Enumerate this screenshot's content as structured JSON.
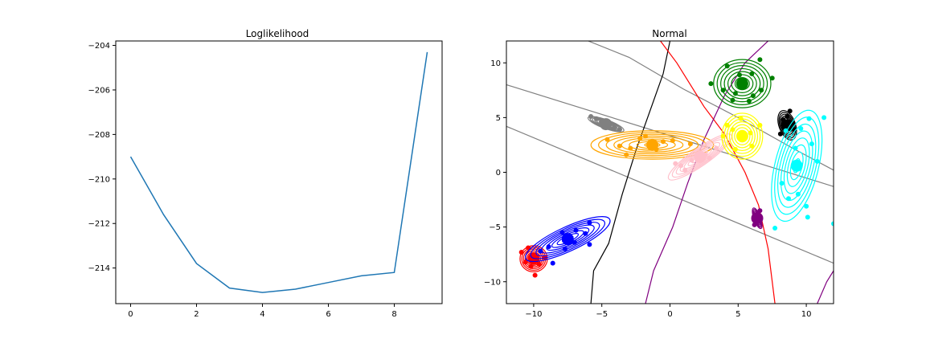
{
  "chart_data": [
    {
      "type": "line",
      "title": "Loglikelihood",
      "xlabel": "",
      "ylabel": "",
      "x": [
        0,
        1,
        2,
        3,
        4,
        5,
        6,
        7,
        8,
        9
      ],
      "y": [
        -209.0,
        -211.6,
        -213.8,
        -214.9,
        -215.1,
        -214.95,
        -214.65,
        -214.35,
        -214.2,
        -204.3
      ],
      "xlim": [
        -0.45,
        9.45
      ],
      "ylim": [
        -215.6,
        -203.8
      ],
      "xticks": [
        0,
        2,
        4,
        6,
        8
      ],
      "yticks": [
        -214,
        -212,
        -210,
        -208,
        -206,
        -204
      ],
      "color": "#1f77b4",
      "grid": false
    },
    {
      "type": "scatter",
      "title": "Normal",
      "xlabel": "",
      "ylabel": "",
      "xlim": [
        -12,
        12
      ],
      "ylim": [
        -12,
        12
      ],
      "xticks": [
        -10,
        -5,
        0,
        5,
        10
      ],
      "yticks": [
        -10,
        -5,
        0,
        5,
        10
      ],
      "grid": false,
      "clusters": [
        {
          "color": "#ff0000",
          "mean": [
            -10,
            -7.9
          ],
          "axes": [
            1.0,
            1.2
          ],
          "angle": 0,
          "points": [
            [
              -10.9,
              -7.3
            ],
            [
              -10.4,
              -6.9
            ],
            [
              -9.5,
              -7.2
            ],
            [
              -9.2,
              -7.8
            ],
            [
              -10.2,
              -8.6
            ],
            [
              -9.9,
              -9.4
            ],
            [
              -10.6,
              -8.2
            ],
            [
              -9.6,
              -8.4
            ],
            [
              -10.1,
              -7.6
            ]
          ]
        },
        {
          "color": "#0000ff",
          "mean": [
            -7.5,
            -6.1
          ],
          "axes": [
            3.4,
            1.1
          ],
          "angle": 25,
          "points": [
            [
              -9.5,
              -7.2
            ],
            [
              -8.6,
              -8.3
            ],
            [
              -7.9,
              -5.5
            ],
            [
              -7.0,
              -6.4
            ],
            [
              -6.2,
              -5.6
            ],
            [
              -5.9,
              -4.6
            ],
            [
              -5.9,
              -6.6
            ],
            [
              -8.9,
              -6.8
            ],
            [
              -6.9,
              -5.3
            ],
            [
              -7.7,
              -7.0
            ]
          ]
        },
        {
          "color": "#008000",
          "mean": [
            5.3,
            8.1
          ],
          "axes": [
            2.1,
            2.2
          ],
          "angle": 0,
          "points": [
            [
              3.0,
              8.1
            ],
            [
              4.2,
              9.7
            ],
            [
              6.6,
              10.3
            ],
            [
              7.5,
              8.6
            ],
            [
              6.7,
              7.5
            ],
            [
              5.8,
              6.5
            ],
            [
              4.6,
              6.6
            ],
            [
              3.9,
              7.5
            ],
            [
              5.1,
              8.9
            ],
            [
              6.0,
              9.0
            ],
            [
              4.8,
              7.2
            ],
            [
              6.1,
              7.0
            ]
          ]
        },
        {
          "color": "#ffa500",
          "mean": [
            -1.3,
            2.5
          ],
          "axes": [
            4.5,
            1.3
          ],
          "angle": 0,
          "points": [
            [
              -4.6,
              3.0
            ],
            [
              -2.9,
              2.2
            ],
            [
              -2.2,
              3.1
            ],
            [
              -0.5,
              2.8
            ],
            [
              0.2,
              2.9
            ],
            [
              1.5,
              2.6
            ],
            [
              -3.7,
              2.4
            ],
            [
              -1.0,
              2.1
            ],
            [
              -1.8,
              3.3
            ],
            [
              -3.2,
              1.6
            ]
          ]
        },
        {
          "color": "#ffc0cb",
          "mean": [
            2.2,
            1.4
          ],
          "axes": [
            2.8,
            0.8
          ],
          "angle": 35,
          "points": [
            [
              0.8,
              0.6
            ],
            [
              1.6,
              1.1
            ],
            [
              2.6,
              1.6
            ],
            [
              3.4,
              2.2
            ],
            [
              1.1,
              0.2
            ],
            [
              2.9,
              1.3
            ],
            [
              0.4,
              0.8
            ]
          ]
        },
        {
          "color": "#ffff00",
          "mean": [
            5.3,
            3.3
          ],
          "axes": [
            1.5,
            2.1
          ],
          "angle": 0,
          "points": [
            [
              4.2,
              4.3
            ],
            [
              5.2,
              4.9
            ],
            [
              6.6,
              4.3
            ],
            [
              6.0,
              2.4
            ],
            [
              4.8,
              2.1
            ],
            [
              3.9,
              3.3
            ],
            [
              5.9,
              3.6
            ],
            [
              4.6,
              3.9
            ]
          ]
        },
        {
          "color": "#000000",
          "mean": [
            8.6,
            4.3
          ],
          "axes": [
            0.6,
            1.4
          ],
          "angle": 20,
          "points": [
            [
              8.1,
              3.5
            ],
            [
              8.6,
              5.1
            ],
            [
              9.0,
              4.5
            ],
            [
              8.3,
              4.8
            ],
            [
              9.1,
              3.9
            ],
            [
              8.5,
              4.2
            ],
            [
              8.8,
              5.6
            ]
          ]
        },
        {
          "color": "#808080",
          "mean": [
            -4.7,
            4.4
          ],
          "axes": [
            1.4,
            0.4
          ],
          "angle": -20,
          "points": [
            [
              -5.8,
              5.1
            ],
            [
              -5.4,
              4.9
            ],
            [
              -5.0,
              4.6
            ],
            [
              -4.5,
              4.3
            ],
            [
              -4.1,
              4.1
            ],
            [
              -3.7,
              3.9
            ]
          ]
        },
        {
          "color": "#00ffff",
          "mean": [
            9.3,
            0.6
          ],
          "axes": [
            1.6,
            5.2
          ],
          "angle": -14,
          "points": [
            [
              8.5,
              3.8
            ],
            [
              9.6,
              4.0
            ],
            [
              10.2,
              4.9
            ],
            [
              11.3,
              5.0
            ],
            [
              10.4,
              2.6
            ],
            [
              9.2,
              2.2
            ],
            [
              8.7,
              -2.4
            ],
            [
              10.0,
              -3.1
            ],
            [
              10.1,
              -4.1
            ],
            [
              7.7,
              -5.1
            ],
            [
              9.4,
              -2.0
            ],
            [
              10.8,
              1.0
            ],
            [
              12.0,
              -4.7
            ],
            [
              8.2,
              -1.0
            ]
          ]
        },
        {
          "color": "#800080",
          "mean": [
            6.4,
            -4.2
          ],
          "axes": [
            0.25,
            1.0
          ],
          "angle": 20,
          "points": [
            [
              6.3,
              -4.5
            ],
            [
              6.5,
              -3.9
            ],
            [
              6.6,
              -3.5
            ],
            [
              6.2,
              -4.8
            ]
          ]
        }
      ]
    }
  ]
}
